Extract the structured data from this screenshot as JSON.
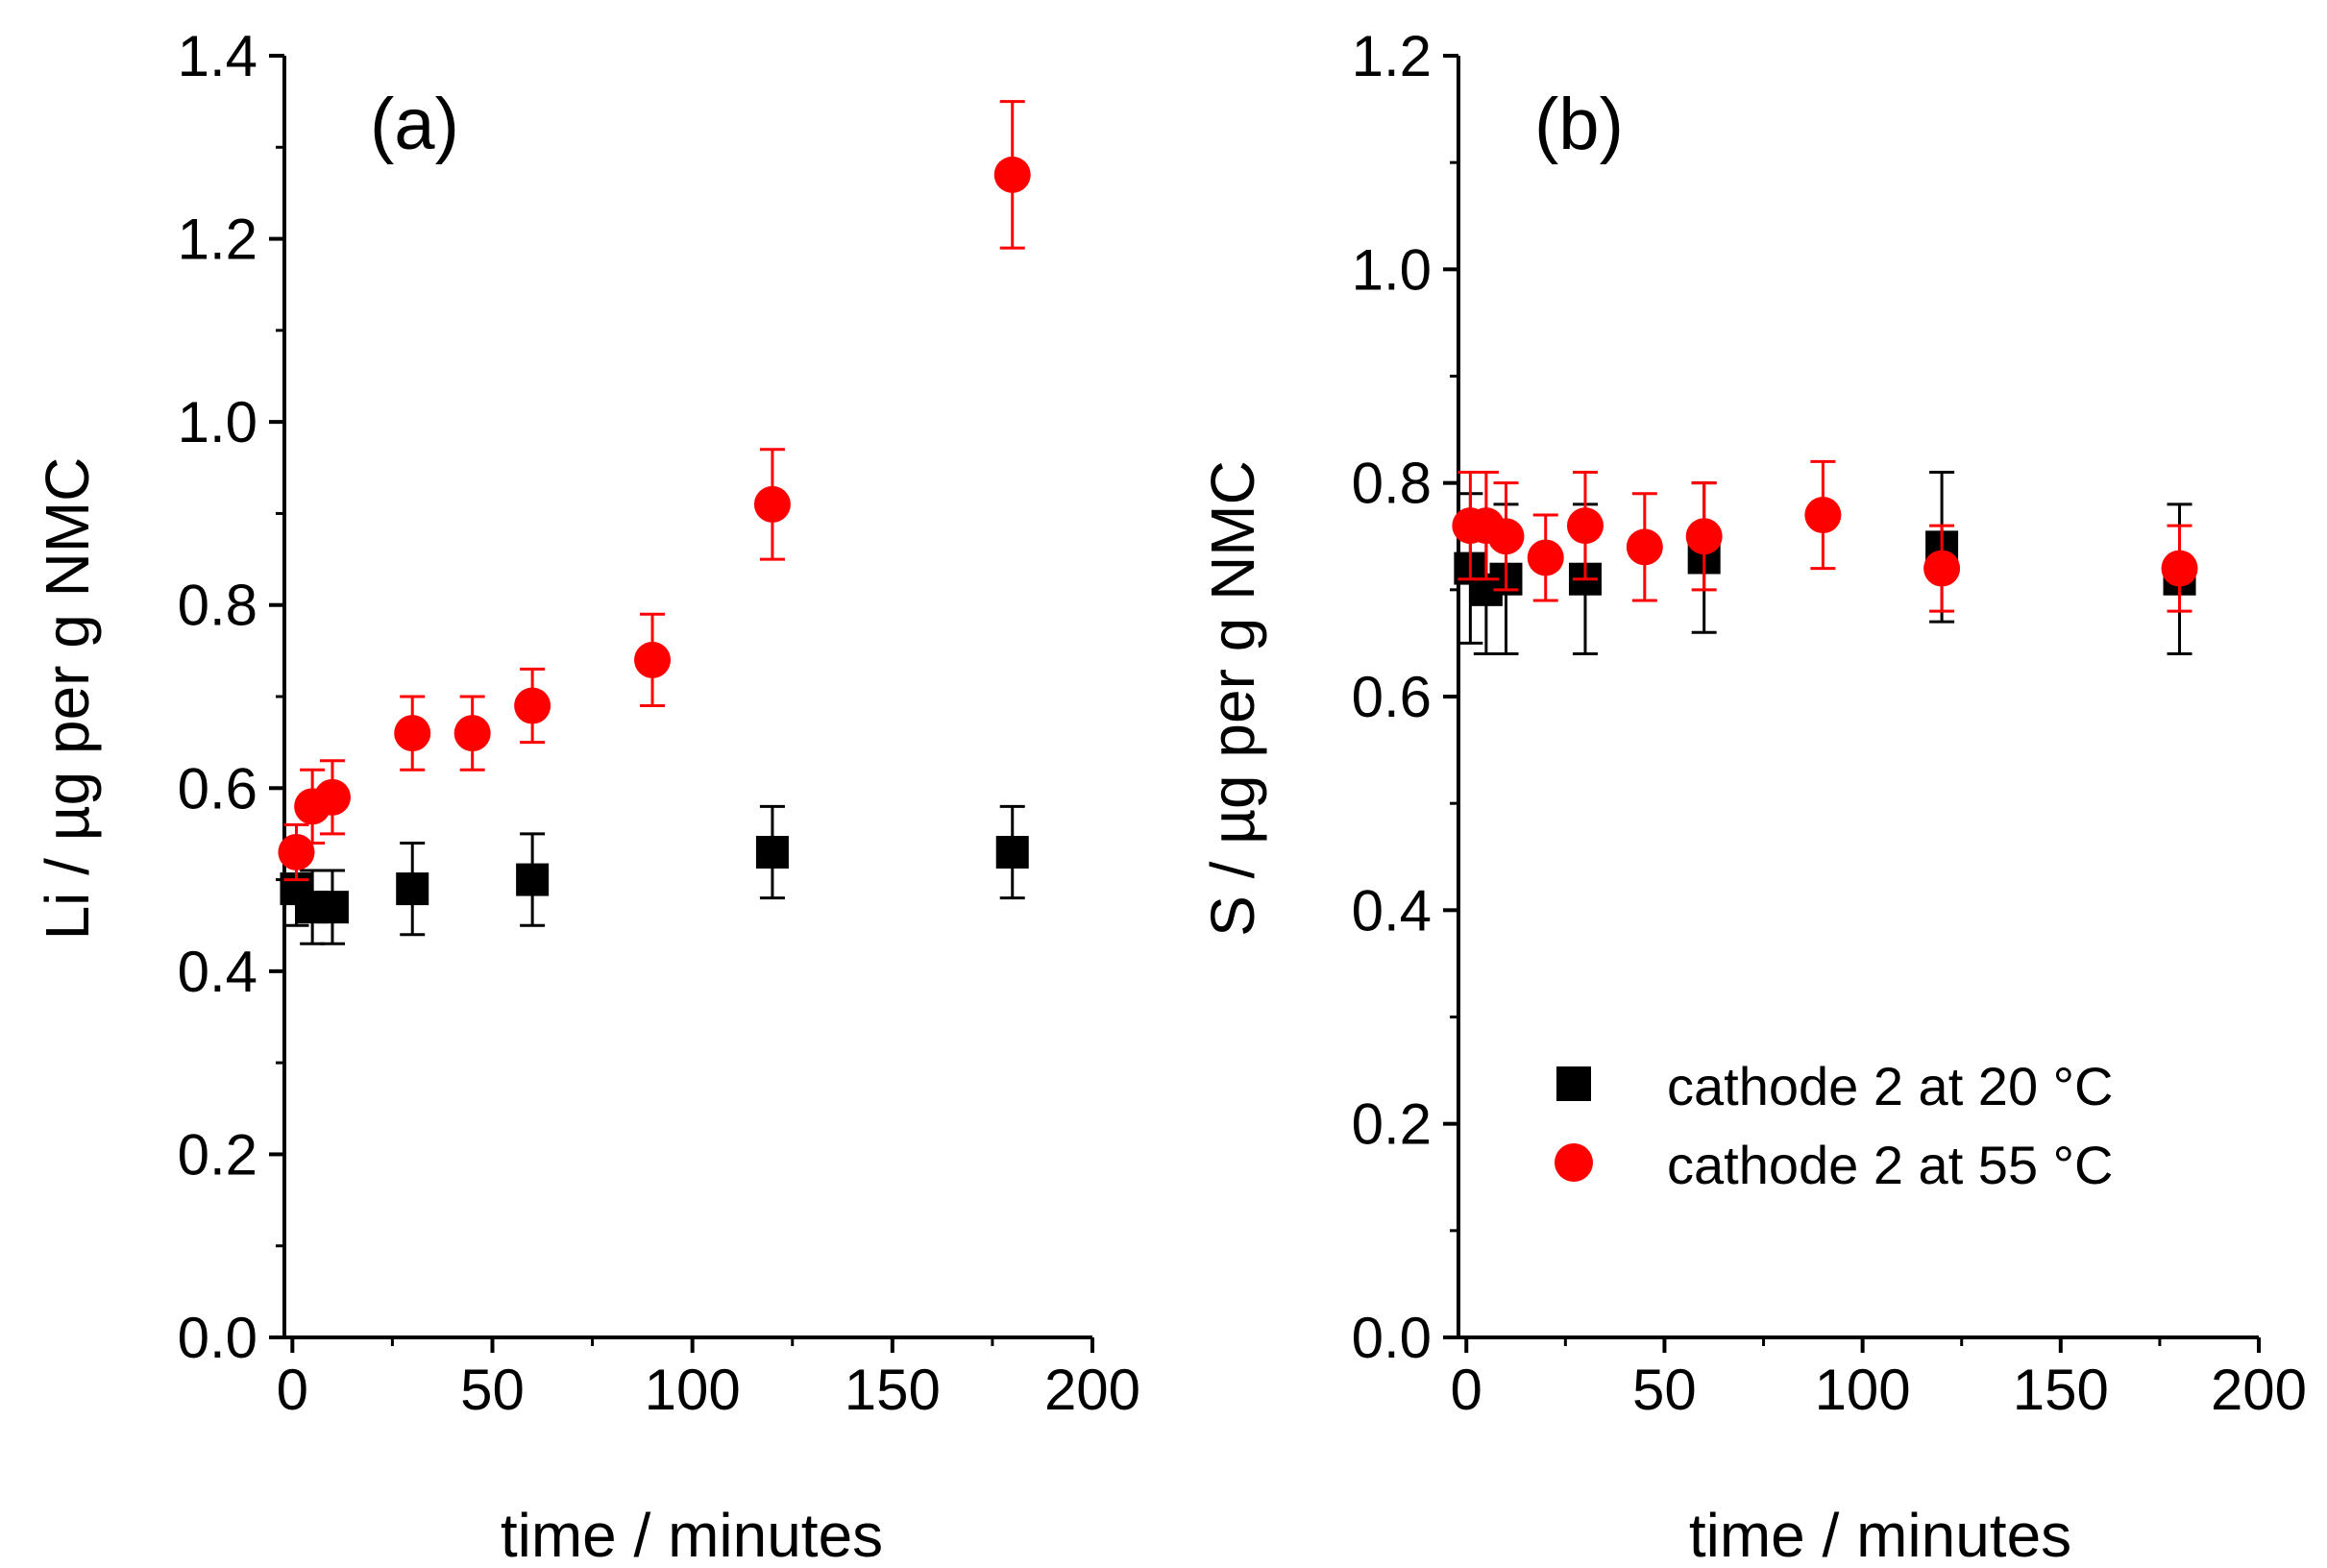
{
  "chart_data": [
    {
      "type": "scatter",
      "panel_label": "(a)",
      "xlabel": "time / minutes",
      "ylabel": "Li / µg per g NMC",
      "xlim": [
        -2,
        200
      ],
      "ylim": [
        0,
        1.4
      ],
      "xticks": [
        "0",
        "50",
        "100",
        "150",
        "200"
      ],
      "yticks": [
        "0.0",
        "0.2",
        "0.4",
        "0.6",
        "0.8",
        "1.0",
        "1.2",
        "1.4"
      ],
      "series": [
        {
          "name": "cathode 2 at 20 °C",
          "marker": "square",
          "color": "#000000",
          "points": [
            {
              "x": 1,
              "y": 0.49,
              "err": 0.04
            },
            {
              "x": 5,
              "y": 0.47,
              "err": 0.04
            },
            {
              "x": 10,
              "y": 0.47,
              "err": 0.04
            },
            {
              "x": 30,
              "y": 0.49,
              "err": 0.05
            },
            {
              "x": 60,
              "y": 0.5,
              "err": 0.05
            },
            {
              "x": 120,
              "y": 0.53,
              "err": 0.05
            },
            {
              "x": 180,
              "y": 0.53,
              "err": 0.05
            }
          ]
        },
        {
          "name": "cathode 2 at 55 °C",
          "marker": "circle",
          "color": "#ff0000",
          "points": [
            {
              "x": 1,
              "y": 0.53,
              "err": 0.03
            },
            {
              "x": 5,
              "y": 0.58,
              "err": 0.04
            },
            {
              "x": 10,
              "y": 0.59,
              "err": 0.04
            },
            {
              "x": 30,
              "y": 0.66,
              "err": 0.04
            },
            {
              "x": 45,
              "y": 0.66,
              "err": 0.04
            },
            {
              "x": 60,
              "y": 0.69,
              "err": 0.04
            },
            {
              "x": 90,
              "y": 0.74,
              "err": 0.05
            },
            {
              "x": 120,
              "y": 0.91,
              "err": 0.06
            },
            {
              "x": 180,
              "y": 1.27,
              "err": 0.08
            }
          ]
        }
      ]
    },
    {
      "type": "scatter",
      "panel_label": "(b)",
      "xlabel": "time / minutes",
      "ylabel": "S / µg per g NMC",
      "xlim": [
        -2,
        200
      ],
      "ylim": [
        0,
        1.2
      ],
      "xticks": [
        "0",
        "50",
        "100",
        "150",
        "200"
      ],
      "yticks": [
        "0.0",
        "0.2",
        "0.4",
        "0.6",
        "0.8",
        "1.0",
        "1.2"
      ],
      "legend": {
        "position": "bottom-right",
        "entries": [
          "cathode 2 at 20 °C",
          "cathode 2 at 55 °C"
        ]
      },
      "series": [
        {
          "name": "cathode 2 at 20 °C",
          "marker": "square",
          "color": "#000000",
          "points": [
            {
              "x": 1,
              "y": 0.72,
              "err": 0.07
            },
            {
              "x": 5,
              "y": 0.7,
              "err": 0.06
            },
            {
              "x": 10,
              "y": 0.71,
              "err": 0.07
            },
            {
              "x": 30,
              "y": 0.71,
              "err": 0.07
            },
            {
              "x": 60,
              "y": 0.73,
              "err": 0.07
            },
            {
              "x": 120,
              "y": 0.74,
              "err": 0.07
            },
            {
              "x": 180,
              "y": 0.71,
              "err": 0.07
            }
          ]
        },
        {
          "name": "cathode 2 at 55 °C",
          "marker": "circle",
          "color": "#ff0000",
          "points": [
            {
              "x": 1,
              "y": 0.76,
              "err": 0.05
            },
            {
              "x": 5,
              "y": 0.76,
              "err": 0.05
            },
            {
              "x": 10,
              "y": 0.75,
              "err": 0.05
            },
            {
              "x": 20,
              "y": 0.73,
              "err": 0.04
            },
            {
              "x": 30,
              "y": 0.76,
              "err": 0.05
            },
            {
              "x": 45,
              "y": 0.74,
              "err": 0.05
            },
            {
              "x": 60,
              "y": 0.75,
              "err": 0.05
            },
            {
              "x": 90,
              "y": 0.77,
              "err": 0.05
            },
            {
              "x": 120,
              "y": 0.72,
              "err": 0.04
            },
            {
              "x": 180,
              "y": 0.72,
              "err": 0.04
            }
          ]
        }
      ]
    }
  ]
}
